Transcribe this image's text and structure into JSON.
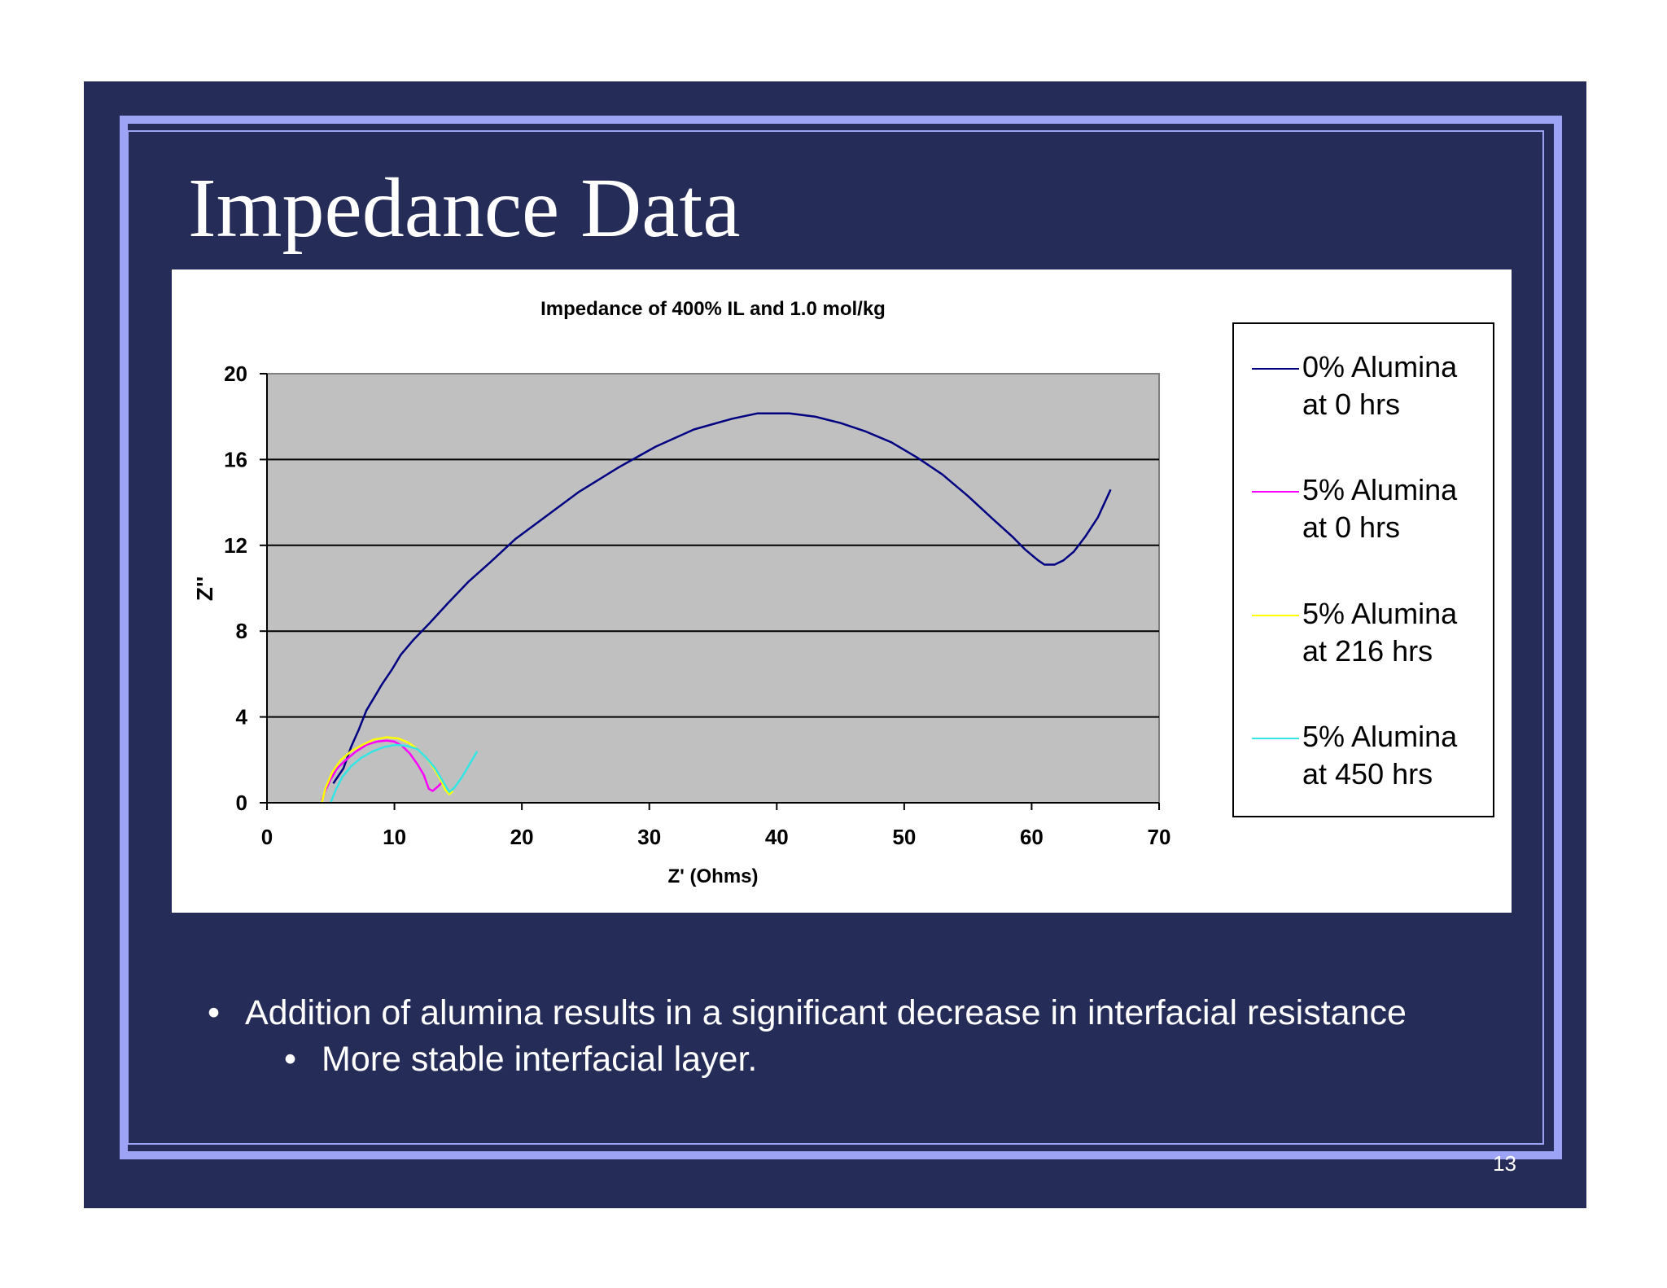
{
  "slide": {
    "title": "Impedance Data",
    "bullets": [
      "Addition of alumina results in a significant decrease in interfacial resistance",
      "More stable interfacial layer."
    ],
    "bullet_char": "•",
    "page_number": "13",
    "colors": {
      "background": "#262c58",
      "frame": "#9da3f5",
      "text": "#ffffff"
    }
  },
  "chart_data": {
    "type": "scatter",
    "title": "Impedance of 400% IL and 1.0 mol/kg",
    "xlabel": "Z' (Ohms)",
    "ylabel": "Z''",
    "xlim": [
      0,
      70
    ],
    "ylim": [
      0,
      20
    ],
    "xticks": [
      0,
      10,
      20,
      30,
      40,
      50,
      60,
      70
    ],
    "yticks": [
      0,
      4,
      8,
      12,
      16,
      20
    ],
    "grid": "horizontal",
    "plot_background": "#c0c0c0",
    "legend_position": "right",
    "series": [
      {
        "name": "0% Alumina at 0 hrs",
        "color": "#000080",
        "points": [
          [
            5.2,
            0.9
          ],
          [
            6.0,
            1.6
          ],
          [
            6.6,
            2.6
          ],
          [
            7.2,
            3.4
          ],
          [
            7.8,
            4.3
          ],
          [
            8.5,
            5.0
          ],
          [
            9.0,
            5.5
          ],
          [
            9.8,
            6.2
          ],
          [
            10.5,
            6.9
          ],
          [
            11.5,
            7.6
          ],
          [
            12.8,
            8.4
          ],
          [
            14.2,
            9.3
          ],
          [
            15.8,
            10.3
          ],
          [
            17.5,
            11.2
          ],
          [
            19.5,
            12.3
          ],
          [
            22.0,
            13.4
          ],
          [
            24.5,
            14.5
          ],
          [
            27.5,
            15.6
          ],
          [
            30.5,
            16.6
          ],
          [
            33.5,
            17.4
          ],
          [
            36.5,
            17.9
          ],
          [
            38.5,
            18.15
          ],
          [
            41.0,
            18.15
          ],
          [
            43.0,
            18.0
          ],
          [
            45.0,
            17.7
          ],
          [
            47.0,
            17.3
          ],
          [
            49.0,
            16.8
          ],
          [
            51.0,
            16.1
          ],
          [
            53.0,
            15.3
          ],
          [
            55.0,
            14.3
          ],
          [
            57.0,
            13.2
          ],
          [
            58.5,
            12.4
          ],
          [
            59.5,
            11.8
          ],
          [
            60.5,
            11.3
          ],
          [
            61.0,
            11.1
          ],
          [
            61.8,
            11.1
          ],
          [
            62.5,
            11.3
          ],
          [
            63.3,
            11.7
          ],
          [
            64.2,
            12.4
          ],
          [
            65.2,
            13.3
          ],
          [
            66.2,
            14.6
          ]
        ]
      },
      {
        "name": "5% Alumina at 0 hrs",
        "color": "#ff00ff",
        "points": [
          [
            4.3,
            0.1
          ],
          [
            4.6,
            0.6
          ],
          [
            5.0,
            1.1
          ],
          [
            5.5,
            1.6
          ],
          [
            6.2,
            2.0
          ],
          [
            7.0,
            2.4
          ],
          [
            7.8,
            2.7
          ],
          [
            8.6,
            2.85
          ],
          [
            9.4,
            2.9
          ],
          [
            10.0,
            2.85
          ],
          [
            10.6,
            2.65
          ],
          [
            11.2,
            2.3
          ],
          [
            11.8,
            1.8
          ],
          [
            12.3,
            1.3
          ],
          [
            12.7,
            0.65
          ],
          [
            13.0,
            0.55
          ],
          [
            13.4,
            0.75
          ],
          [
            13.8,
            1.0
          ]
        ]
      },
      {
        "name": "5% Alumina at 216 hrs",
        "color": "#ffff00",
        "points": [
          [
            4.3,
            0.0
          ],
          [
            4.6,
            0.7
          ],
          [
            5.1,
            1.4
          ],
          [
            5.8,
            2.0
          ],
          [
            6.6,
            2.4
          ],
          [
            7.5,
            2.7
          ],
          [
            8.4,
            2.95
          ],
          [
            9.4,
            3.05
          ],
          [
            10.3,
            3.0
          ],
          [
            11.1,
            2.8
          ],
          [
            11.8,
            2.5
          ],
          [
            12.5,
            2.1
          ],
          [
            13.1,
            1.6
          ],
          [
            13.6,
            1.1
          ],
          [
            14.0,
            0.6
          ],
          [
            14.3,
            0.4
          ],
          [
            14.6,
            0.55
          ]
        ]
      },
      {
        "name": "5% Alumina at 450 hrs",
        "color": "#33e5e5",
        "points": [
          [
            5.0,
            0.0
          ],
          [
            5.4,
            0.6
          ],
          [
            5.9,
            1.2
          ],
          [
            6.6,
            1.7
          ],
          [
            7.4,
            2.1
          ],
          [
            8.3,
            2.4
          ],
          [
            9.2,
            2.6
          ],
          [
            10.1,
            2.7
          ],
          [
            11.0,
            2.65
          ],
          [
            11.8,
            2.5
          ],
          [
            12.5,
            2.1
          ],
          [
            13.2,
            1.6
          ],
          [
            13.8,
            1.0
          ],
          [
            14.3,
            0.5
          ],
          [
            14.7,
            0.7
          ],
          [
            15.3,
            1.2
          ],
          [
            15.9,
            1.8
          ],
          [
            16.5,
            2.4
          ]
        ]
      }
    ]
  }
}
